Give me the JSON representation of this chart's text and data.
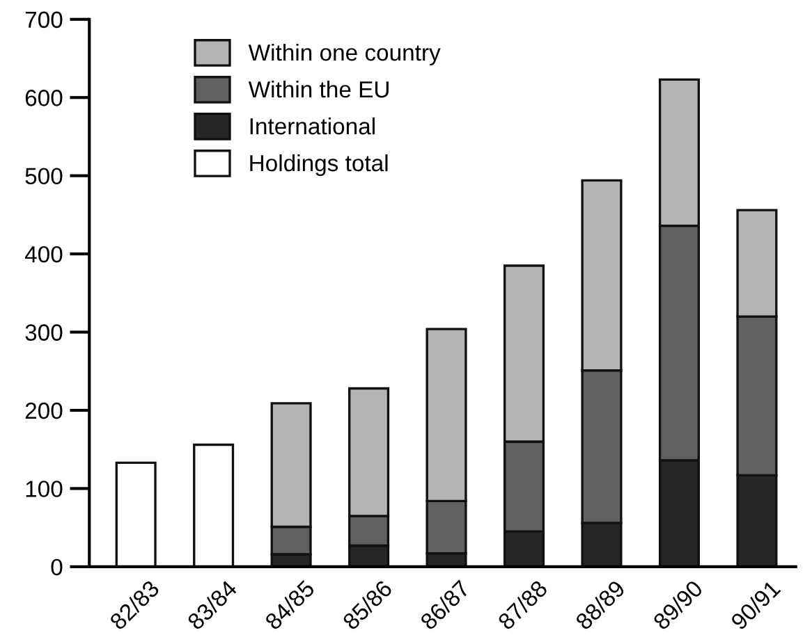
{
  "chart_data": {
    "type": "bar",
    "stacked": true,
    "categories": [
      "82/83",
      "83/84",
      "84/85",
      "85/86",
      "86/87",
      "87/88",
      "88/89",
      "89/90",
      "90/91"
    ],
    "series": [
      {
        "name": "Holdings total",
        "color": "#ffffff",
        "values": [
          133,
          156,
          null,
          null,
          null,
          null,
          null,
          null,
          null
        ]
      },
      {
        "name": "International",
        "color": "#262626",
        "values": [
          null,
          null,
          16,
          27,
          17,
          45,
          56,
          136,
          117
        ]
      },
      {
        "name": "Within the EU",
        "color": "#606060",
        "values": [
          null,
          null,
          35,
          38,
          67,
          115,
          195,
          300,
          203
        ]
      },
      {
        "name": "Within one country",
        "color": "#b4b4b4",
        "values": [
          null,
          null,
          158,
          163,
          220,
          225,
          243,
          187,
          136
        ]
      }
    ],
    "ylim": [
      0,
      700
    ],
    "yticks": [
      0,
      100,
      200,
      300,
      400,
      500,
      600,
      700
    ],
    "grid": false,
    "legend": "top left"
  }
}
